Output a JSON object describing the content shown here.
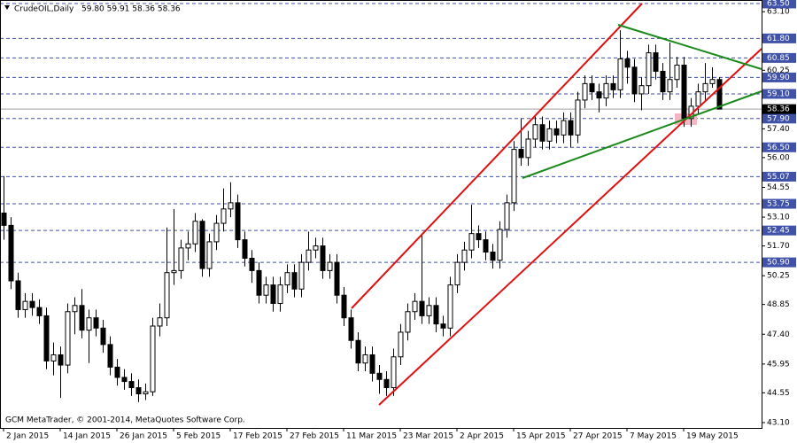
{
  "chart_data": {
    "type": "candlestick",
    "title": "CrudeOIL,Daily",
    "quote_text": "59.80 59.91 58.36 58.36",
    "footer": "GCM MetaTrader, © 2001-2014, MetaQuotes Software Corp.",
    "up_color": "#ffffff",
    "down_color": "#000000",
    "edge_color": "#000000",
    "categories": [
      "2 Jan 2015",
      null,
      null,
      null,
      null,
      null,
      null,
      null,
      "14 Jan 2015",
      null,
      null,
      null,
      null,
      null,
      null,
      null,
      "26 Jan 2015",
      null,
      null,
      null,
      null,
      null,
      null,
      null,
      "5 Feb 2015",
      null,
      null,
      null,
      null,
      null,
      null,
      null,
      "17 Feb 2015",
      null,
      null,
      null,
      null,
      null,
      null,
      null,
      "27 Feb 2015",
      null,
      null,
      null,
      null,
      null,
      null,
      null,
      "11 Mar 2015",
      null,
      null,
      null,
      null,
      null,
      null,
      null,
      "23 Mar 2015",
      null,
      null,
      null,
      null,
      null,
      null,
      null,
      "2 Apr 2015",
      null,
      null,
      null,
      null,
      null,
      null,
      null,
      "15 Apr 2015",
      null,
      null,
      null,
      null,
      null,
      null,
      null,
      "27 Apr 2015",
      null,
      null,
      null,
      null,
      null,
      null,
      null,
      "7 May 2015",
      null,
      null,
      null,
      null,
      null,
      null,
      null,
      "19 May 2015",
      null,
      null,
      null,
      null,
      null
    ],
    "ohlc": [
      [
        53.3,
        55.1,
        52.0,
        52.7
      ],
      [
        52.7,
        53.1,
        49.6,
        50.0
      ],
      [
        50.0,
        50.4,
        48.2,
        48.6
      ],
      [
        48.6,
        49.4,
        48.2,
        49.0
      ],
      [
        49.0,
        49.4,
        48.3,
        48.7
      ],
      [
        48.7,
        49.1,
        47.9,
        48.3
      ],
      [
        48.3,
        48.7,
        45.7,
        46.1
      ],
      [
        46.1,
        47.0,
        45.4,
        46.4
      ],
      [
        46.4,
        46.8,
        44.3,
        45.9
      ],
      [
        45.9,
        48.9,
        45.5,
        48.5
      ],
      [
        48.5,
        49.2,
        47.4,
        48.8
      ],
      [
        48.8,
        49.6,
        47.2,
        47.6
      ],
      [
        47.6,
        48.6,
        46.0,
        48.2
      ],
      [
        48.2,
        48.6,
        47.3,
        47.7
      ],
      [
        47.7,
        48.1,
        46.5,
        46.9
      ],
      [
        46.9,
        47.3,
        45.4,
        45.8
      ],
      [
        45.8,
        46.2,
        44.9,
        45.3
      ],
      [
        45.3,
        45.7,
        44.7,
        45.1
      ],
      [
        45.1,
        45.5,
        44.4,
        44.8
      ],
      [
        44.8,
        45.2,
        44.1,
        44.5
      ],
      [
        44.5,
        45.0,
        44.2,
        44.6
      ],
      [
        44.6,
        48.2,
        44.4,
        47.8
      ],
      [
        47.8,
        48.9,
        47.3,
        48.2
      ],
      [
        48.2,
        52.6,
        47.8,
        50.4
      ],
      [
        50.4,
        53.5,
        49.8,
        50.5
      ],
      [
        50.5,
        52.0,
        50.1,
        51.6
      ],
      [
        51.6,
        52.4,
        51.0,
        51.8
      ],
      [
        51.8,
        53.3,
        51.4,
        52.9
      ],
      [
        52.9,
        53.0,
        50.2,
        50.6
      ],
      [
        50.6,
        52.3,
        50.2,
        51.9
      ],
      [
        51.9,
        53.2,
        51.5,
        52.8
      ],
      [
        52.8,
        54.5,
        52.4,
        53.5
      ],
      [
        53.5,
        54.8,
        53.1,
        53.8
      ],
      [
        53.8,
        54.2,
        51.6,
        52.0
      ],
      [
        52.0,
        52.4,
        50.7,
        51.1
      ],
      [
        51.1,
        51.5,
        49.9,
        50.5
      ],
      [
        50.5,
        50.9,
        48.9,
        49.3
      ],
      [
        49.3,
        50.2,
        48.9,
        49.8
      ],
      [
        49.8,
        50.2,
        48.5,
        48.9
      ],
      [
        48.9,
        50.2,
        48.5,
        49.8
      ],
      [
        49.8,
        50.8,
        49.4,
        50.4
      ],
      [
        50.4,
        50.8,
        49.2,
        49.6
      ],
      [
        49.6,
        51.3,
        49.2,
        50.9
      ],
      [
        50.9,
        52.4,
        50.5,
        51.5
      ],
      [
        51.5,
        52.1,
        51.1,
        51.7
      ],
      [
        51.7,
        52.1,
        50.1,
        50.5
      ],
      [
        50.5,
        51.3,
        50.1,
        50.9
      ],
      [
        50.9,
        51.3,
        48.9,
        49.3
      ],
      [
        49.3,
        49.7,
        47.8,
        48.2
      ],
      [
        48.2,
        48.6,
        46.7,
        47.1
      ],
      [
        47.1,
        47.5,
        45.6,
        46.0
      ],
      [
        46.0,
        46.8,
        45.6,
        46.4
      ],
      [
        46.4,
        46.8,
        45.1,
        45.5
      ],
      [
        45.5,
        45.9,
        44.5,
        45.2
      ],
      [
        45.2,
        45.6,
        44.4,
        44.8
      ],
      [
        44.8,
        46.7,
        44.4,
        46.3
      ],
      [
        46.3,
        47.9,
        45.9,
        47.5
      ],
      [
        47.5,
        48.9,
        47.1,
        48.5
      ],
      [
        48.5,
        49.4,
        48.1,
        49.0
      ],
      [
        49.0,
        52.2,
        47.9,
        48.3
      ],
      [
        48.3,
        49.2,
        47.9,
        48.8
      ],
      [
        48.8,
        49.2,
        47.5,
        47.9
      ],
      [
        47.9,
        48.3,
        47.3,
        47.7
      ],
      [
        47.7,
        50.2,
        47.3,
        49.8
      ],
      [
        49.8,
        51.3,
        49.4,
        50.9
      ],
      [
        50.9,
        51.9,
        50.5,
        51.5
      ],
      [
        51.5,
        53.7,
        51.1,
        52.3
      ],
      [
        52.3,
        52.7,
        51.6,
        52.0
      ],
      [
        52.0,
        52.4,
        51.0,
        51.4
      ],
      [
        51.4,
        51.8,
        50.6,
        51.0
      ],
      [
        51.0,
        52.9,
        50.6,
        52.5
      ],
      [
        52.5,
        54.2,
        52.1,
        53.8
      ],
      [
        53.8,
        56.8,
        53.4,
        56.4
      ],
      [
        56.4,
        57.9,
        55.6,
        56.0
      ],
      [
        56.0,
        57.3,
        55.6,
        56.9
      ],
      [
        56.9,
        58.0,
        56.5,
        57.6
      ],
      [
        57.6,
        58.0,
        56.4,
        56.8
      ],
      [
        56.8,
        57.8,
        56.4,
        57.4
      ],
      [
        57.4,
        57.8,
        56.7,
        57.1
      ],
      [
        57.1,
        58.2,
        56.7,
        57.8
      ],
      [
        57.8,
        58.2,
        56.5,
        57.1
      ],
      [
        57.1,
        59.2,
        56.7,
        58.8
      ],
      [
        58.8,
        60.0,
        58.4,
        59.6
      ],
      [
        59.6,
        60.0,
        58.8,
        59.2
      ],
      [
        59.2,
        59.6,
        58.2,
        58.9
      ],
      [
        58.9,
        60.0,
        58.5,
        59.6
      ],
      [
        59.6,
        60.0,
        58.9,
        59.3
      ],
      [
        59.3,
        62.2,
        58.9,
        60.8
      ],
      [
        60.8,
        61.2,
        59.6,
        60.4
      ],
      [
        60.4,
        60.8,
        58.7,
        59.1
      ],
      [
        59.1,
        59.9,
        58.3,
        59.5
      ],
      [
        59.5,
        61.5,
        59.1,
        61.1
      ],
      [
        61.1,
        61.5,
        59.8,
        60.2
      ],
      [
        60.2,
        60.6,
        58.8,
        59.2
      ],
      [
        59.2,
        61.6,
        58.8,
        59.8
      ],
      [
        59.8,
        60.9,
        59.4,
        60.5
      ],
      [
        60.5,
        60.9,
        57.5,
        57.9
      ],
      [
        57.9,
        58.9,
        57.5,
        58.5
      ],
      [
        58.5,
        59.6,
        58.1,
        59.2
      ],
      [
        59.2,
        60.6,
        58.8,
        59.6
      ],
      [
        59.6,
        60.4,
        59.4,
        59.8
      ],
      [
        59.8,
        59.91,
        58.36,
        58.36
      ]
    ],
    "ylim": [
      42.84,
      63.67
    ],
    "yticks": [
      {
        "value": 63.1,
        "label": "63.10"
      },
      {
        "value": 60.25,
        "label": "60.25"
      },
      {
        "value": 57.4,
        "label": "57.40"
      },
      {
        "value": 56.0,
        "label": "56.00"
      },
      {
        "value": 54.55,
        "label": "54.55"
      },
      {
        "value": 53.1,
        "label": "53.10"
      },
      {
        "value": 51.7,
        "label": "51.70"
      },
      {
        "value": 50.25,
        "label": "50.25"
      },
      {
        "value": 48.85,
        "label": "48.85"
      },
      {
        "value": 47.4,
        "label": "47.40"
      },
      {
        "value": 45.95,
        "label": "45.95"
      },
      {
        "value": 44.55,
        "label": "44.55"
      },
      {
        "value": 43.1,
        "label": "43.10"
      }
    ],
    "levels": [
      {
        "value": 63.5,
        "label": "63.50"
      },
      {
        "value": 61.8,
        "label": "61.80"
      },
      {
        "value": 60.85,
        "label": "60.85"
      },
      {
        "value": 59.9,
        "label": "59.90"
      },
      {
        "value": 59.1,
        "label": "59.10"
      },
      {
        "value": 57.9,
        "label": "57.90"
      },
      {
        "value": 56.5,
        "label": "56.50"
      },
      {
        "value": 55.07,
        "label": "55.07"
      },
      {
        "value": 53.75,
        "label": "53.75"
      },
      {
        "value": 52.45,
        "label": "52.45"
      },
      {
        "value": 50.9,
        "label": "50.90"
      }
    ],
    "level_color": "#3f51a8",
    "current_price": {
      "value": 58.36,
      "label": "58.36"
    }
  }
}
